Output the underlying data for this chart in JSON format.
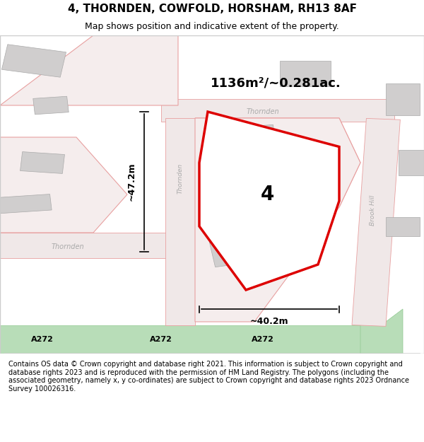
{
  "title": "4, THORNDEN, COWFOLD, HORSHAM, RH13 8AF",
  "subtitle": "Map shows position and indicative extent of the property.",
  "footer": "Contains OS data © Crown copyright and database right 2021. This information is subject to Crown copyright and database rights 2023 and is reproduced with the permission of HM Land Registry. The polygons (including the associated geometry, namely x, y co-ordinates) are subject to Crown copyright and database rights 2023 Ordnance Survey 100026316.",
  "area_label": "1136m²/~0.281ac.",
  "width_label": "~40.2m",
  "height_label": "~47.2m",
  "property_number": "4",
  "bg_color": "#f5f0f0",
  "map_bg": "#ffffff",
  "road_color": "#c8e6c9",
  "road_label_color": "#7ab87a",
  "pink_line_color": "#e8a0a0",
  "red_polygon_color": "#dd0000",
  "street_label_color": "#aaaaaa",
  "a272_bg": "#8bc48b"
}
